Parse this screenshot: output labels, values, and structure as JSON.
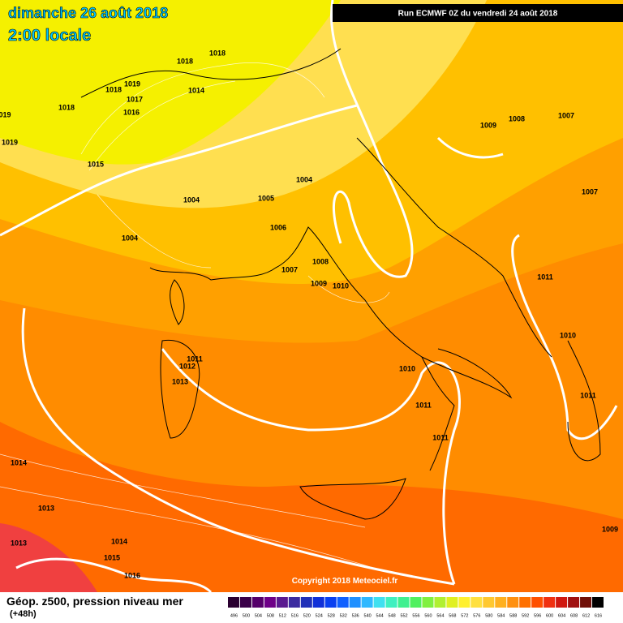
{
  "header": {
    "date": "dimanche 26 août 2018",
    "time": "2:00 locale",
    "run": "Run ECMWF 0Z du vendredi 24 août 2018"
  },
  "isobar_labels": [
    "1018",
    "1018",
    "1019",
    "1018",
    "1017",
    "1014",
    "1016",
    "1018",
    "019",
    "1019",
    "1015",
    "1004",
    "1005",
    "1004",
    "1006",
    "1004",
    "1007",
    "1008",
    "1009",
    "1010",
    "1009",
    "1008",
    "1007",
    "1007",
    "1011",
    "1010",
    "1011",
    "1012",
    "1013",
    "1010",
    "1011",
    "1011",
    "1011",
    "1014",
    "1013",
    "1013",
    "1014",
    "1015",
    "1016",
    "1009"
  ],
  "copyright": "Copyright 2018 Meteociel.fr",
  "footer": {
    "title": "Géop. z500, pression niveau mer",
    "lead": "(+48h)"
  },
  "scale": {
    "labels": [
      "496",
      "500",
      "504",
      "508",
      "512",
      "516",
      "520",
      "524",
      "528",
      "532",
      "536",
      "540",
      "544",
      "548",
      "552",
      "556",
      "560",
      "564",
      "568",
      "572",
      "576",
      "580",
      "584",
      "588",
      "592",
      "596",
      "600",
      "604",
      "608",
      "612",
      "616"
    ],
    "colors": [
      "#2a0030",
      "#3a0048",
      "#55006a",
      "#6e0088",
      "#5a1a90",
      "#3c2ca0",
      "#2030b8",
      "#1030d8",
      "#0a40f0",
      "#1060ff",
      "#2090ff",
      "#30b8ff",
      "#40e0f0",
      "#40f0c0",
      "#40f090",
      "#50f060",
      "#80f040",
      "#b0f030",
      "#e0f020",
      "#fff030",
      "#ffe040",
      "#ffc830",
      "#ffb020",
      "#ff9010",
      "#ff7000",
      "#ff5000",
      "#f03010",
      "#d01810",
      "#a01010",
      "#701008",
      "#000000"
    ]
  }
}
